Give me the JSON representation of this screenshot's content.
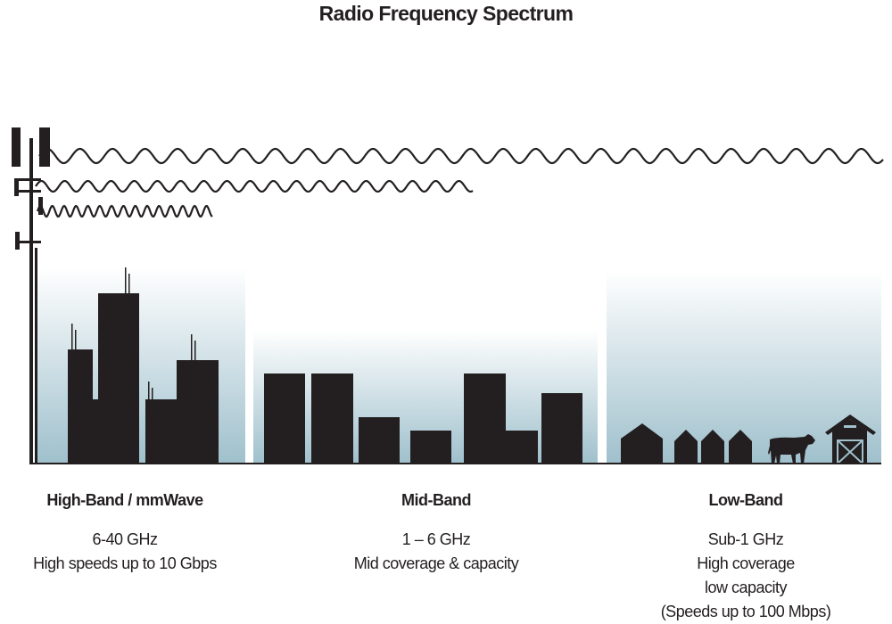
{
  "title": "Radio Frequency Spectrum",
  "colors": {
    "silhouette": "#231f20",
    "gradient_bottom": "#9fc0cc",
    "gradient_top": "#ffffff"
  },
  "bands": [
    {
      "name": "High-Band / mmWave",
      "lines": [
        "6-40 GHz",
        "High speeds up to 10 Gbps"
      ]
    },
    {
      "name": "Mid-Band",
      "lines": [
        "1 – 6 GHz",
        "Mid coverage & capacity"
      ]
    },
    {
      "name": "Low-Band",
      "lines": [
        "Sub-1 GHz",
        "High coverage",
        "low capacity",
        "(Speeds up to 100 Mbps)"
      ]
    }
  ],
  "icons": [
    "cell-tower-icon",
    "city-buildings-icon",
    "houses-icon",
    "cow-icon",
    "barn-icon"
  ]
}
